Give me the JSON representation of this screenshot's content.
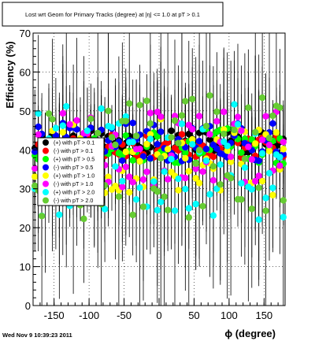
{
  "chart_data": {
    "type": "scatter",
    "title": "Lost wrt Geom for Primary Tracks (degree) at |η| <= 1.0 at pT > 0.1",
    "xlabel": "ϕ (degree)",
    "ylabel": "Efficiency (%)",
    "xlim": [
      -180,
      180
    ],
    "ylim": [
      0,
      70
    ],
    "xticks": [
      -150,
      -100,
      -50,
      0,
      50,
      100,
      150
    ],
    "yticks": [
      0,
      10,
      20,
      30,
      40,
      50,
      60,
      70
    ],
    "grid": true,
    "legend_position": "left-middle",
    "series": [
      {
        "name": "(+) with pT > 0.1",
        "color": "#000000",
        "seed": 11,
        "center": 42,
        "spread": 3
      },
      {
        "name": "(-) with pT > 0.1",
        "color": "#ff0000",
        "seed": 23,
        "center": 41,
        "spread": 3
      },
      {
        "name": "(+) with pT > 0.5",
        "color": "#00ff00",
        "seed": 37,
        "center": 41,
        "spread": 5
      },
      {
        "name": "(-) with pT > 0.5",
        "color": "#0000ff",
        "seed": 41,
        "center": 42,
        "spread": 5
      },
      {
        "name": "(+) with pT > 1.0",
        "color": "#ffff00",
        "seed": 53,
        "center": 38,
        "spread": 10
      },
      {
        "name": "(-) with pT > 1.0",
        "color": "#ff00ff",
        "seed": 67,
        "center": 40,
        "spread": 10
      },
      {
        "name": "(+) with pT > 2.0",
        "color": "#00ffff",
        "seed": 79,
        "center": 37,
        "spread": 15
      },
      {
        "name": "(-) with pT > 2.0",
        "color": "#66cc33",
        "seed": 97,
        "center": 38,
        "spread": 16
      }
    ]
  },
  "footer": {
    "timestamp": "Wed Nov  9 10:39:23 2011"
  }
}
